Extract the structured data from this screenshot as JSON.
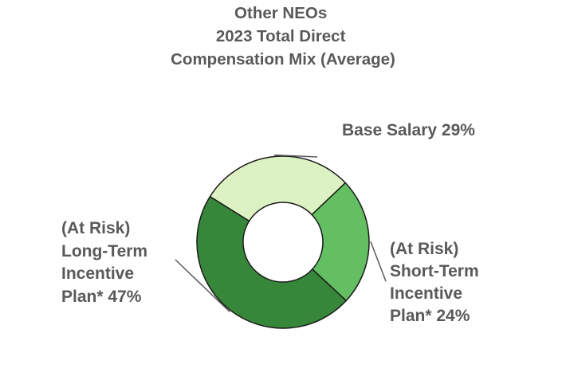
{
  "chart_data": {
    "type": "pie",
    "donut": true,
    "title_lines": [
      "Other NEOs",
      "2023 Total Direct",
      "Compensation Mix (Average)"
    ],
    "slices": [
      {
        "name": "Base Salary",
        "value": 29,
        "color": "#ddf2c2",
        "label_lines": [
          "Base Salary 29%"
        ]
      },
      {
        "name": "(At Risk) Short-Term Incentive Plan*",
        "value": 24,
        "color": "#63bf62",
        "label_lines": [
          "(At Risk)",
          "Short-Term",
          "Incentive",
          "Plan* 24%"
        ]
      },
      {
        "name": "(At Risk) Long-Term Incentive Plan*",
        "value": 47,
        "color": "#37873a",
        "label_lines": [
          "(At Risk)",
          "Long-Term",
          "Incentive",
          "Plan* 47%"
        ]
      }
    ],
    "legend": "none",
    "stroke_color": "#1a1a1a",
    "leader_color": "#595959"
  }
}
